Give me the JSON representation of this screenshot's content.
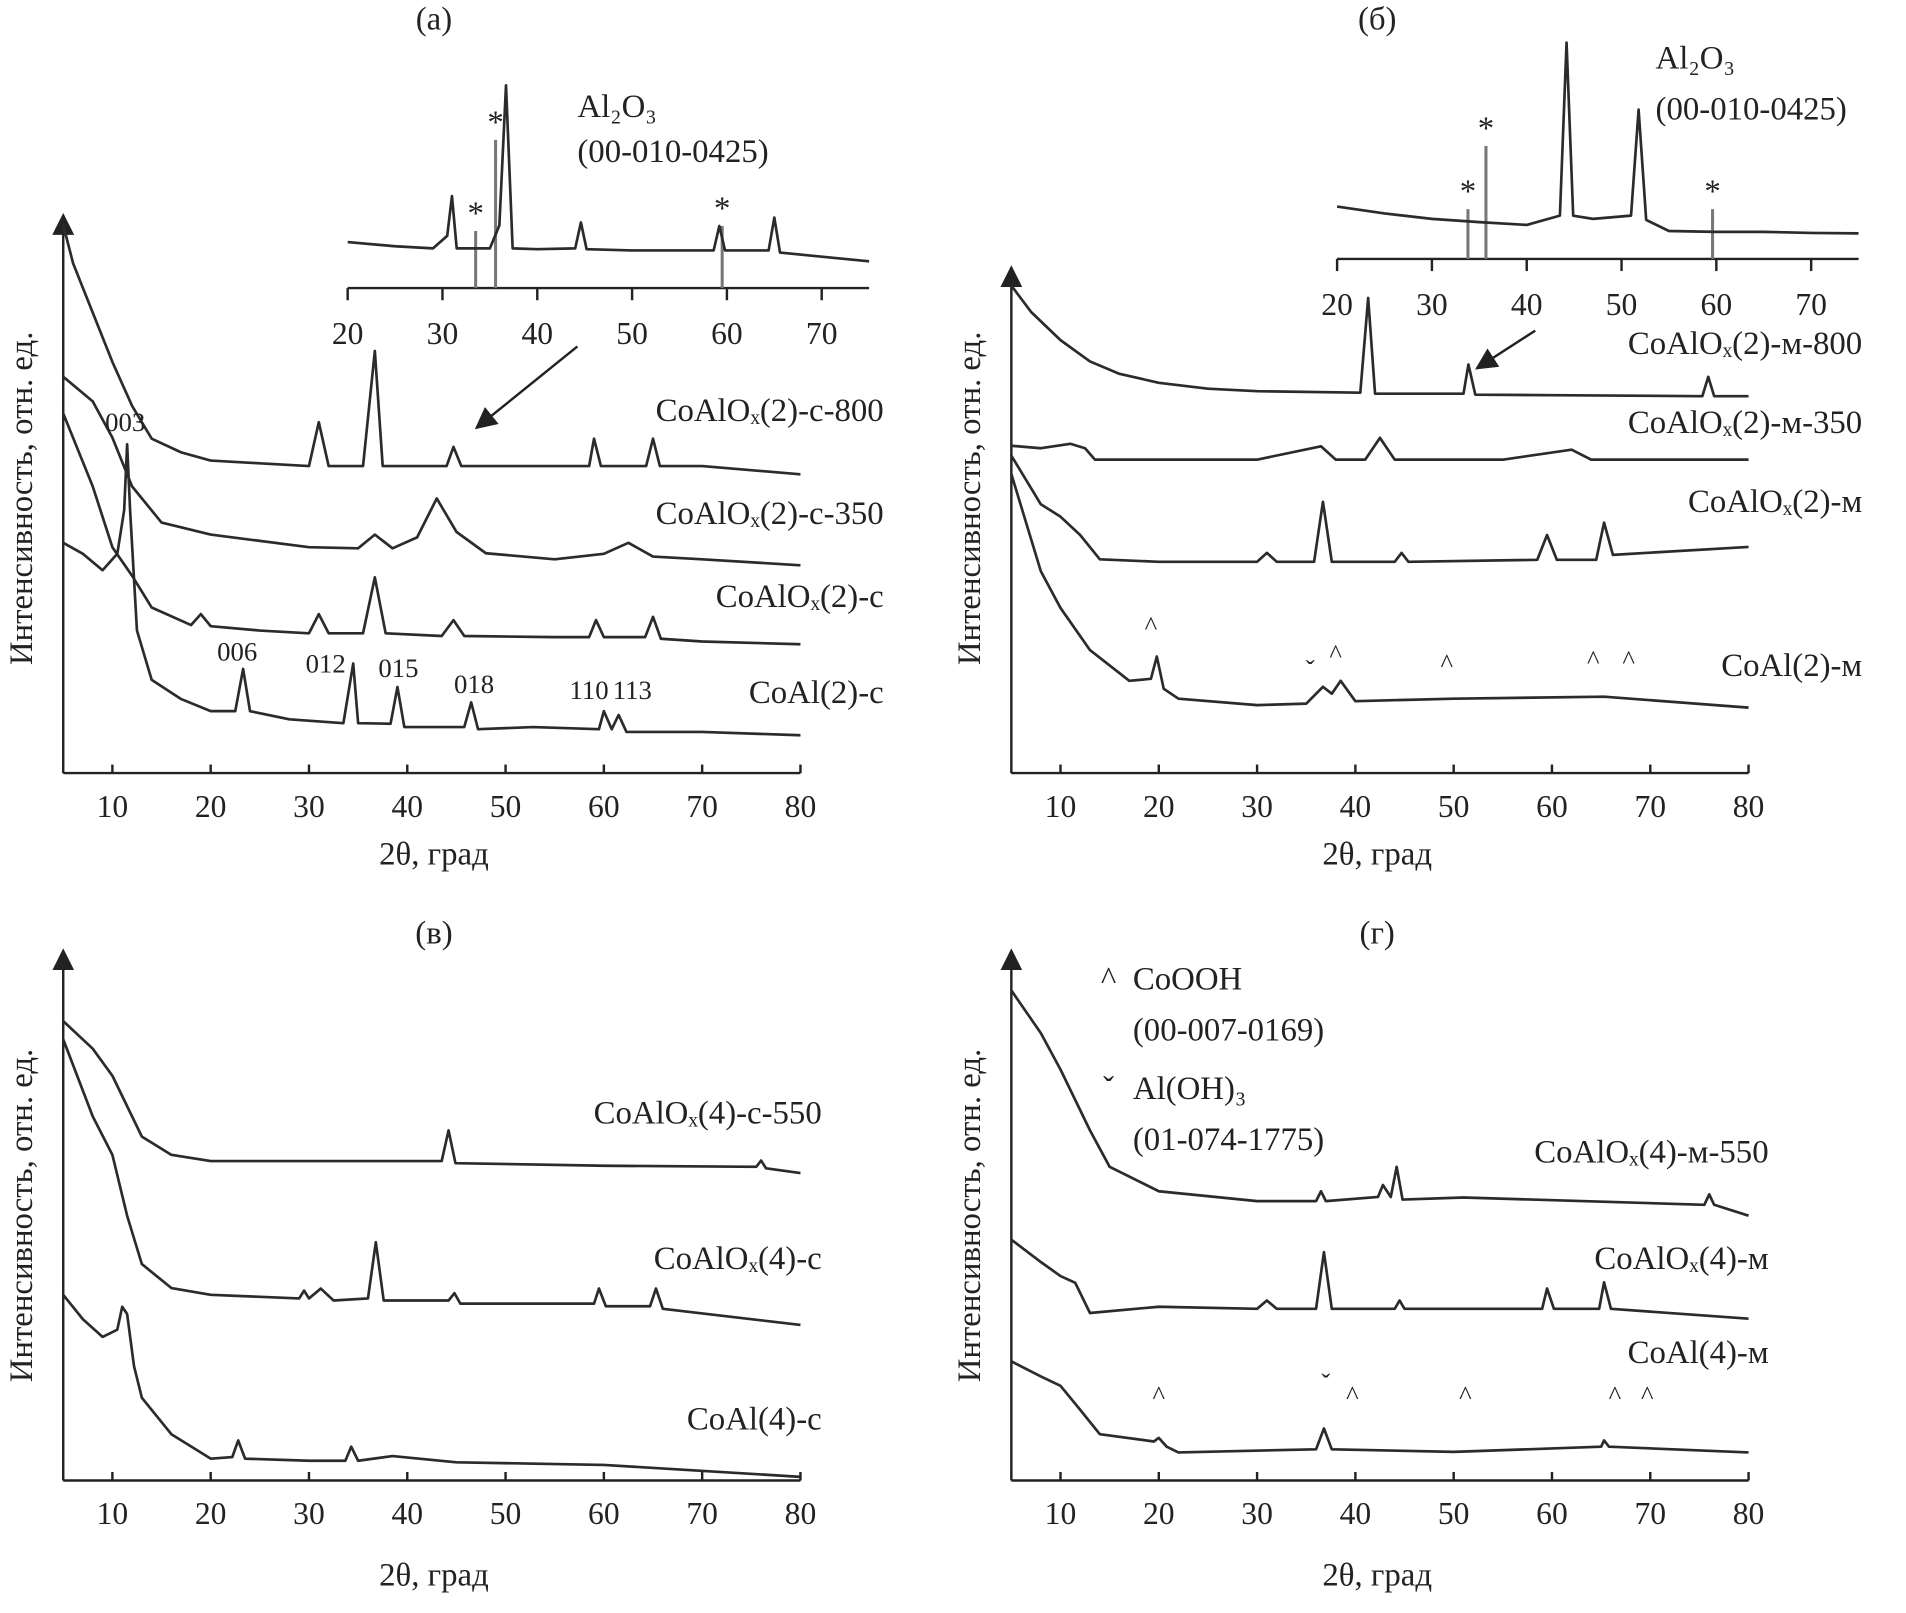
{
  "chart_data": [
    {
      "type": "line",
      "title": "(а)",
      "x_label": "2θ, град",
      "y_label": "Интенсивность, отн. ед.",
      "xlim": [
        5,
        80
      ],
      "xticks": [
        10,
        20,
        30,
        40,
        50,
        60,
        70,
        80
      ],
      "ylim": [
        0,
        100
      ],
      "color": "#2b2b2b",
      "series": [
        {
          "name": "CoAlOₓ(2)-с-800",
          "x": [
            5,
            6,
            8,
            10,
            12,
            14,
            17,
            20,
            25,
            30,
            31,
            32,
            35.5,
            36.7,
            37.5,
            40,
            44,
            44.7,
            45.5,
            55,
            58.5,
            59,
            59.7,
            64.3,
            65,
            65.7,
            70,
            80
          ],
          "values": [
            100,
            93,
            84,
            75,
            67,
            61,
            58.5,
            57,
            56.5,
            56,
            64,
            56,
            56,
            77,
            56,
            56,
            56,
            59.5,
            56,
            56,
            56,
            61,
            56,
            56,
            61,
            56,
            56,
            54.5
          ]
        },
        {
          "name": "CoAlOₓ(2)-с-350",
          "x": [
            5,
            8,
            10,
            12,
            15,
            20,
            30,
            35,
            36.7,
            38.5,
            41,
            43,
            45,
            48,
            55,
            60,
            62.5,
            65,
            70,
            80
          ],
          "values": [
            72.3,
            67.8,
            61.2,
            52.3,
            45.7,
            43.5,
            41.2,
            41,
            43.5,
            41,
            43,
            50.1,
            44,
            40.1,
            39,
            40,
            42,
            39.5,
            39,
            37.9
          ]
        },
        {
          "name": "CoAlOₓ(2)-с",
          "x": [
            5,
            8,
            10,
            12,
            14,
            18,
            19,
            20,
            25,
            30,
            31,
            32,
            35.5,
            36.7,
            37.8,
            43.5,
            44.7,
            45.8,
            55,
            58.5,
            59.2,
            60,
            64.2,
            65,
            65.8,
            70,
            80
          ],
          "values": [
            65.6,
            52.3,
            41.2,
            36,
            30.2,
            27,
            29,
            26.8,
            26,
            25.5,
            29,
            25.5,
            25.5,
            35.7,
            25.5,
            25,
            27.9,
            25,
            24.8,
            24.8,
            27.9,
            24.8,
            24.8,
            28.5,
            24.5,
            24,
            23.5
          ]
        },
        {
          "name": "CoAl(2)-с",
          "x": [
            5,
            7,
            9,
            10.5,
            11.2,
            11.5,
            11.8,
            12.5,
            14,
            17,
            20,
            22.5,
            23.3,
            24,
            28,
            33.5,
            34.5,
            35,
            38.3,
            39,
            39.7,
            45.8,
            46.5,
            47.2,
            52.8,
            59.5,
            60,
            60.8,
            61.5,
            62.3,
            70,
            80
          ],
          "values": [
            42,
            40,
            37,
            40,
            48,
            60,
            48,
            26,
            17,
            13.5,
            11.3,
            11.3,
            19,
            11.3,
            9.8,
            9.1,
            20,
            9.1,
            9,
            15.7,
            8.4,
            8.4,
            12.9,
            8,
            8.4,
            8,
            11.3,
            8,
            10.6,
            7.5,
            7.5,
            6.9
          ]
        }
      ],
      "annotations": [
        {
          "text": "003",
          "x": 11.3,
          "y": 63.5
        },
        {
          "text": "006",
          "x": 22.7,
          "y": 21.7
        },
        {
          "text": "012",
          "x": 31.7,
          "y": 19.5
        },
        {
          "text": "015",
          "x": 39.1,
          "y": 18.6
        },
        {
          "text": "018",
          "x": 46.8,
          "y": 15.7
        },
        {
          "text": "110",
          "x": 58.5,
          "y": 14.6
        },
        {
          "text": "113",
          "x": 62.9,
          "y": 14.6
        }
      ],
      "inset": {
        "type": "line",
        "xlim": [
          20,
          75
        ],
        "xticks": [
          20,
          30,
          40,
          50,
          60,
          70
        ],
        "ylim": [
          0,
          100
        ],
        "color": "#2b2b2b",
        "series": [
          {
            "x": [
              20,
              25,
              29,
              30.5,
              31,
              31.5,
              35,
              36,
              36.7,
              37.4,
              40,
              44,
              44.6,
              45.2,
              50,
              58.6,
              59.2,
              59.8,
              64.4,
              65,
              65.6,
              70,
              75
            ],
            "values": [
              22,
              20,
              19,
              25,
              44,
              19,
              19,
              30,
              97,
              19,
              18.6,
              19,
              31.4,
              18.6,
              18,
              18,
              29.7,
              18,
              18,
              33.7,
              17,
              15,
              12.8
            ]
          }
        ],
        "reference": {
          "label_lines": [
            "Al₂O₃",
            "(00-010-0425)"
          ],
          "marker": "*",
          "color": "#777777",
          "x": [
            33.5,
            35.6,
            59.5
          ],
          "values": [
            27.3,
            70.9,
            29.7
          ]
        }
      }
    },
    {
      "type": "line",
      "title": "(б)",
      "x_label": "2θ, град",
      "y_label": "Интенсивность, отн. ед.",
      "xlim": [
        5,
        80
      ],
      "xticks": [
        10,
        20,
        30,
        40,
        50,
        60,
        70,
        80
      ],
      "ylim": [
        0,
        100
      ],
      "color": "#2b2b2b",
      "series": [
        {
          "name": "CoAlOₓ(2)-м-800",
          "x": [
            5,
            7,
            10,
            13,
            16,
            20,
            25,
            30,
            40.5,
            41.3,
            42,
            51,
            51.5,
            52.2,
            60,
            75.3,
            75.9,
            76.5,
            80
          ],
          "values": [
            98.3,
            93,
            87.3,
            83,
            80.5,
            78.7,
            77.5,
            77,
            76.7,
            95.8,
            76.5,
            76.5,
            82.4,
            76.3,
            76.2,
            76,
            79.9,
            76,
            76
          ]
        },
        {
          "name": "CoAlOₓ(2)-м-350",
          "x": [
            5,
            8,
            11,
            12.5,
            13.5,
            20,
            30,
            36.5,
            38,
            41,
            42.5,
            44,
            55,
            62,
            64,
            70,
            80
          ],
          "values": [
            66,
            65.5,
            66.4,
            65.5,
            63.2,
            63.2,
            63.2,
            65.9,
            63.2,
            63.2,
            67.6,
            63.2,
            63.2,
            65.2,
            63.2,
            63.2,
            63.2
          ]
        },
        {
          "name": "CoAlOₓ(2)-м",
          "x": [
            5,
            8,
            10,
            12,
            14,
            20,
            30,
            31,
            32,
            35.8,
            36.7,
            37.6,
            44,
            44.7,
            45.4,
            58.5,
            59.5,
            60.5,
            64.5,
            65.3,
            66.2,
            80
          ],
          "values": [
            64,
            54.2,
            51.7,
            48,
            43.1,
            42.6,
            42.6,
            44.4,
            42.6,
            42.6,
            54.7,
            42.6,
            42.6,
            44.4,
            42.6,
            43,
            48,
            43,
            43,
            50.5,
            44,
            45.6
          ]
        },
        {
          "name": "CoAl(2)-м",
          "x": [
            5,
            8,
            10,
            13,
            17,
            19.2,
            19.8,
            20.5,
            22,
            30,
            35,
            36.7,
            37.6,
            38.5,
            40,
            50,
            65.3,
            80
          ],
          "values": [
            60.3,
            40.7,
            33.3,
            24.8,
            18.6,
            19,
            23.5,
            17,
            15,
            13.7,
            14,
            17.4,
            16,
            18.6,
            14.5,
            15,
            15.4,
            13.2
          ]
        }
      ],
      "annotations": [
        {
          "text": "^",
          "x": 19.2,
          "y": 29.2
        },
        {
          "text": "ˇ",
          "x": 35.4,
          "y": 20.3
        },
        {
          "text": "^",
          "x": 38,
          "y": 23.5
        },
        {
          "text": "^",
          "x": 49.3,
          "y": 21.6
        },
        {
          "text": "^",
          "x": 64.2,
          "y": 22.3
        },
        {
          "text": "^",
          "x": 67.8,
          "y": 22.3
        }
      ],
      "inset": {
        "type": "line",
        "xlim": [
          20,
          75
        ],
        "xticks": [
          20,
          30,
          40,
          50,
          60,
          70
        ],
        "ylim": [
          0,
          100
        ],
        "color": "#2b2b2b",
        "series": [
          {
            "x": [
              20,
              25,
              30,
              35,
              40,
              43.5,
              44.2,
              44.9,
              47,
              51,
              51.8,
              52.6,
              55,
              60,
              65,
              70,
              75
            ],
            "values": [
              24.2,
              21,
              18.5,
              17,
              15.7,
              20,
              100,
              20,
              18.5,
              20,
              69,
              18,
              12.9,
              12.5,
              12.5,
              12,
              11.8
            ]
          }
        ],
        "reference": {
          "label_lines": [
            "Al₂O₃",
            "(00-010-0425)"
          ],
          "marker": "*",
          "color": "#777777",
          "x": [
            33.8,
            35.7,
            59.6
          ],
          "values": [
            23,
            52.2,
            23
          ]
        }
      }
    },
    {
      "type": "line",
      "title": "(в)",
      "x_label": "2θ, град",
      "y_label": "Интенсивность, отн. ед.",
      "xlim": [
        5,
        80
      ],
      "xticks": [
        10,
        20,
        30,
        40,
        50,
        60,
        70,
        80
      ],
      "ylim": [
        0,
        100
      ],
      "color": "#2b2b2b",
      "series": [
        {
          "name": "CoAlOₓ(4)-с-550",
          "x": [
            5,
            8,
            10,
            13,
            16,
            20,
            30,
            43.5,
            44.2,
            44.9,
            60,
            75.5,
            76,
            76.5,
            80
          ],
          "values": [
            88.3,
            83,
            77.8,
            66.1,
            62.6,
            61.4,
            61.4,
            61.4,
            67.3,
            61,
            60.5,
            60.3,
            61.5,
            60,
            59.1
          ]
        },
        {
          "name": "CoAlOₓ(4)-с",
          "x": [
            5,
            8,
            10,
            11.5,
            13,
            14.5,
            16,
            20,
            29,
            29.5,
            30,
            31.2,
            32.5,
            36,
            36.8,
            37.6,
            44.2,
            44.8,
            45.4,
            59,
            59.5,
            60.2,
            64.7,
            65.3,
            66,
            80
          ],
          "values": [
            84.8,
            70,
            62.6,
            50.9,
            41.6,
            39.3,
            37,
            35.7,
            35,
            36.5,
            35,
            36.9,
            34.6,
            35,
            45.8,
            34.6,
            34.6,
            36,
            34,
            34,
            36.9,
            33.5,
            33.5,
            36.9,
            33,
            29.9
          ]
        },
        {
          "name": "CoAl(4)-с",
          "x": [
            5,
            7,
            9,
            10.5,
            11,
            11.5,
            12.2,
            13,
            16,
            20,
            22.2,
            22.8,
            23.5,
            30,
            33.7,
            34.3,
            35,
            38.5,
            45,
            60,
            80
          ],
          "values": [
            35.7,
            31,
            27.6,
            29,
            33.4,
            32,
            22,
            15.9,
            8.9,
            4.2,
            4.5,
            7.7,
            4.2,
            3.8,
            3.8,
            6.5,
            3.8,
            4.7,
            3.5,
            3,
            0.7
          ]
        }
      ]
    },
    {
      "type": "line",
      "title": "(г)",
      "x_label": "2θ, град",
      "y_label": "Интенсивность, отн. ед.",
      "xlim": [
        5,
        80
      ],
      "xticks": [
        10,
        20,
        30,
        40,
        50,
        60,
        70,
        80
      ],
      "ylim": [
        0,
        100
      ],
      "color": "#2b2b2b",
      "series": [
        {
          "name": "CoAlOₓ(4)-м-550",
          "x": [
            5,
            8,
            10,
            13,
            15,
            20,
            30,
            36,
            36.5,
            37,
            42.3,
            42.8,
            43.6,
            44.2,
            44.8,
            51,
            75.5,
            76,
            76.5,
            80
          ],
          "values": [
            94.2,
            86,
            79,
            67.3,
            60.3,
            55.6,
            53.7,
            53.7,
            55.6,
            53.7,
            54.5,
            56.8,
            54.5,
            60.3,
            54,
            54.4,
            53,
            55,
            53,
            50.9
          ]
        },
        {
          "name": "CoAlOₓ(4)-м",
          "x": [
            5,
            8,
            10,
            11.5,
            13,
            20,
            30,
            31,
            32,
            36,
            36.8,
            37.6,
            44,
            44.5,
            45,
            59,
            59.5,
            60.2,
            64.8,
            65.3,
            66,
            80
          ],
          "values": [
            46.3,
            42,
            39.3,
            38,
            32.2,
            33.4,
            33,
            34.6,
            33,
            33,
            43.9,
            33,
            33,
            34.6,
            33,
            33,
            36.9,
            33,
            33,
            38.1,
            33,
            31.1
          ]
        },
        {
          "name": "CoAl(4)-м",
          "x": [
            5,
            8,
            10,
            12,
            14,
            19.5,
            20,
            20.8,
            22,
            36,
            36.8,
            37.6,
            50,
            65,
            65.3,
            65.8,
            80
          ],
          "values": [
            22.9,
            20,
            18.2,
            13.6,
            8.9,
            7.5,
            8.2,
            6.5,
            5.4,
            6,
            10,
            6,
            5.5,
            6.5,
            7.7,
            6.5,
            5.4
          ]
        }
      ],
      "annotations": [
        {
          "text": "^",
          "x": 20,
          "y": 15.9
        },
        {
          "text": "ˇ",
          "x": 37,
          "y": 18.2
        },
        {
          "text": "^",
          "x": 39.7,
          "y": 15.9
        },
        {
          "text": "^",
          "x": 51.2,
          "y": 15.9
        },
        {
          "text": "^",
          "x": 66.4,
          "y": 15.9
        },
        {
          "text": "^",
          "x": 69.7,
          "y": 15.9
        }
      ],
      "legend": [
        {
          "marker": "^",
          "lines": [
            "CoOOH",
            "(00-007-0169)"
          ]
        },
        {
          "marker": "ˇ",
          "lines": [
            "Al(OH)₃",
            "(01-074-1775)"
          ]
        }
      ]
    }
  ]
}
